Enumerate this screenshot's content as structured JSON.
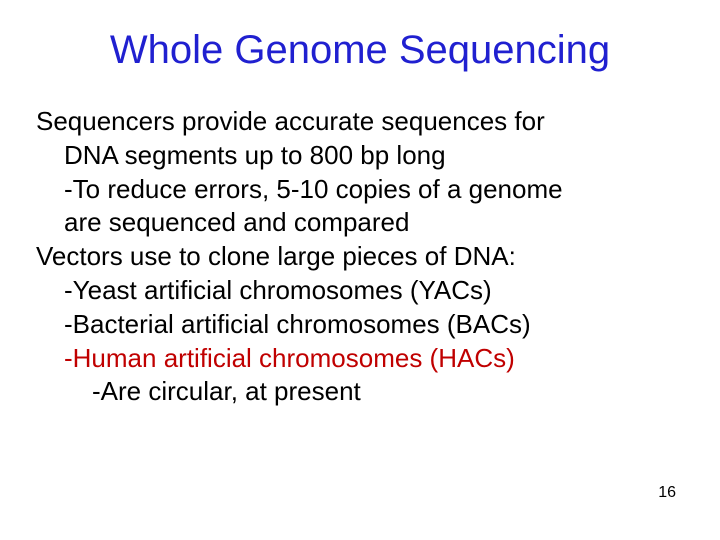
{
  "colors": {
    "title": "#2020d0",
    "body": "#000000",
    "accent": "#c00000",
    "background": "#ffffff"
  },
  "fonts": {
    "title_size": 40,
    "body_size": 26,
    "pagenum_size": 16,
    "family": "Arial"
  },
  "title": "Whole Genome Sequencing",
  "lines": {
    "l1": "Sequencers provide accurate sequences for",
    "l2": "DNA segments up to 800 bp long",
    "l3": "-To reduce errors, 5-10 copies of a genome",
    "l4": "are sequenced and compared",
    "l5": "Vectors use to clone large pieces of DNA:",
    "l6": "-Yeast artificial chromosomes (YACs)",
    "l7": "-Bacterial artificial chromosomes (BACs)",
    "l8": "-Human artificial chromosomes (HACs)",
    "l9": "-Are circular, at present"
  },
  "page_number": "16"
}
